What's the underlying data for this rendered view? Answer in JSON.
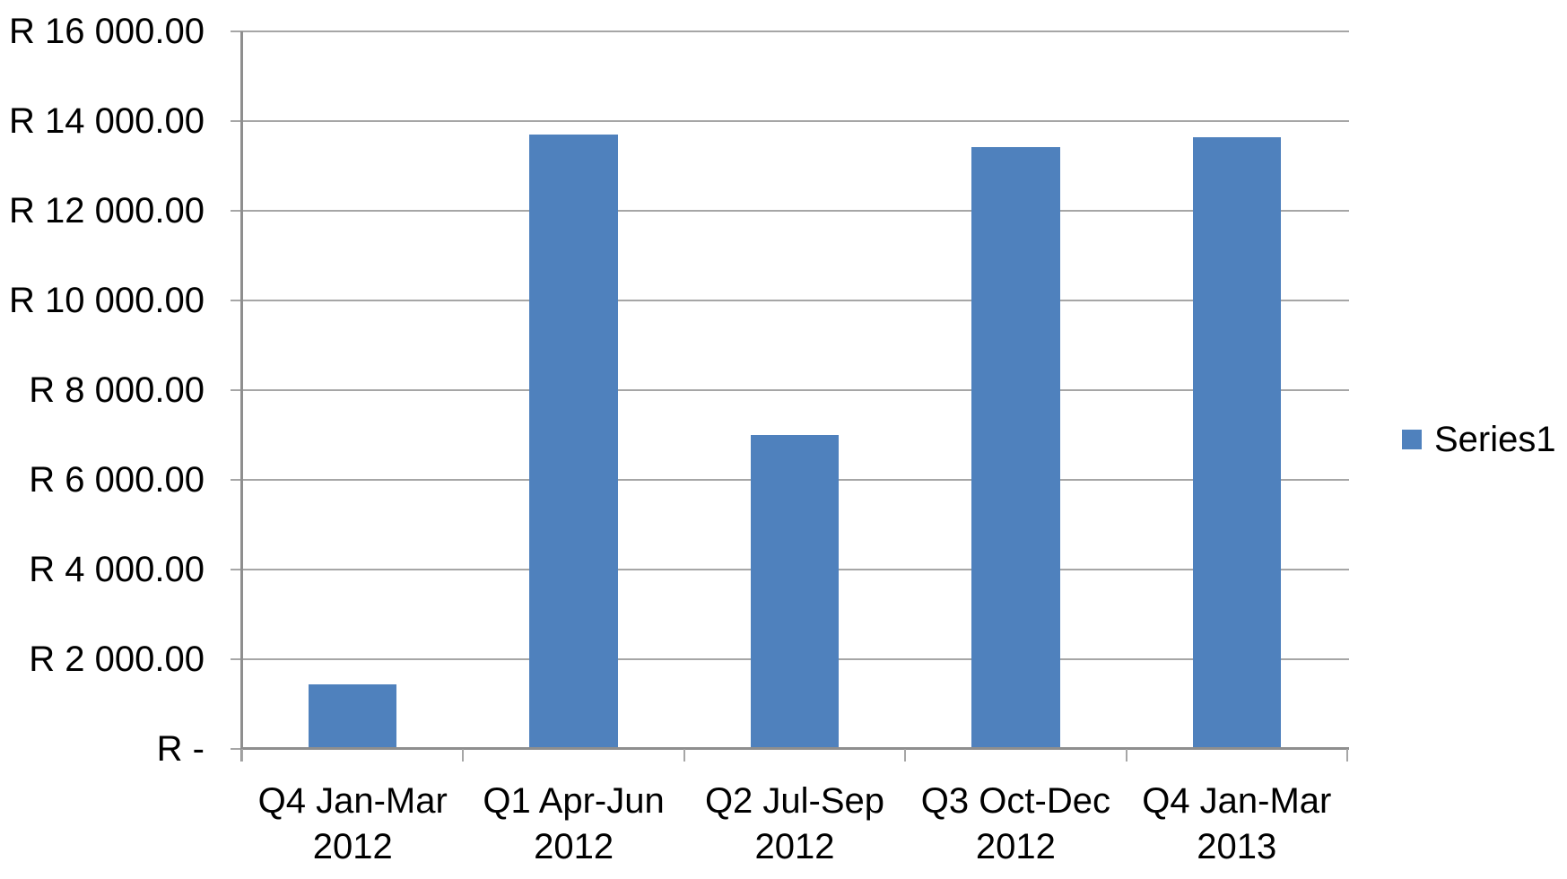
{
  "chart_data": {
    "type": "bar",
    "categories": [
      "Q4 Jan-Mar 2012",
      "Q1 Apr-Jun 2012",
      "Q2 Jul-Sep 2012",
      "Q3 Oct-Dec 2012",
      "Q4 Jan-Mar 2013"
    ],
    "series": [
      {
        "name": "Series1",
        "values": [
          1450,
          13700,
          7000,
          13430,
          13650
        ],
        "color": "#4F81BD"
      }
    ],
    "ylim": [
      0,
      16000
    ],
    "ytick_step": 2000,
    "ytick_labels": [
      "R -",
      "R 2 000.00",
      "R 4 000.00",
      "R 6 000.00",
      "R 8 000.00",
      "R 10 000.00",
      "R 12 000.00",
      "R 14 000.00",
      "R 16 000.00"
    ],
    "grid": true,
    "legend_position": "right",
    "colors": {
      "bar": "#4F81BD",
      "gridline": "#A6A6A6",
      "axis": "#8E8E8E",
      "text": "#000000"
    }
  }
}
